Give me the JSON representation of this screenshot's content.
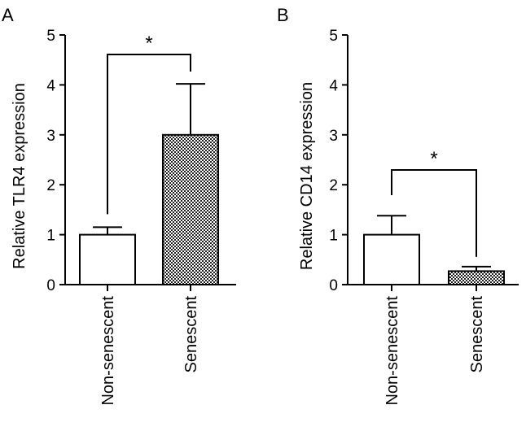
{
  "figure": {
    "panels": [
      {
        "panel_label": "A",
        "significance_marker": "*"
      },
      {
        "panel_label": "B",
        "significance_marker": "*"
      }
    ]
  },
  "chart_data": [
    {
      "type": "bar",
      "title": "",
      "xlabel": "",
      "ylabel": "Relative TLR4 expression",
      "categories": [
        "Non-senescent",
        "Senescent"
      ],
      "values": [
        1.0,
        3.0
      ],
      "error_upper": [
        1.15,
        4.02
      ],
      "ylim": [
        0,
        5
      ],
      "yticks": [
        "0",
        "1",
        "2",
        "3",
        "4",
        "5"
      ],
      "bar_fills": [
        "white",
        "checkered"
      ],
      "significance": {
        "between": [
          0,
          1
        ],
        "label": "*"
      },
      "grid": false,
      "legend": "none",
      "colors": {
        "axis": "#000000",
        "bar_outline": "#000000",
        "pattern_dark": "#222222",
        "pattern_light": "#ffffff"
      }
    },
    {
      "type": "bar",
      "title": "",
      "xlabel": "",
      "ylabel": "Relative CD14 expression",
      "categories": [
        "Non-senescent",
        "Senescent"
      ],
      "values": [
        1.0,
        0.27
      ],
      "error_upper": [
        1.38,
        0.36
      ],
      "ylim": [
        0,
        5
      ],
      "yticks": [
        "0",
        "1",
        "2",
        "3",
        "4",
        "5"
      ],
      "bar_fills": [
        "white",
        "checkered"
      ],
      "significance": {
        "between": [
          0,
          1
        ],
        "label": "*"
      },
      "grid": false,
      "legend": "none",
      "colors": {
        "axis": "#000000",
        "bar_outline": "#000000",
        "pattern_dark": "#222222",
        "pattern_light": "#ffffff"
      }
    }
  ]
}
